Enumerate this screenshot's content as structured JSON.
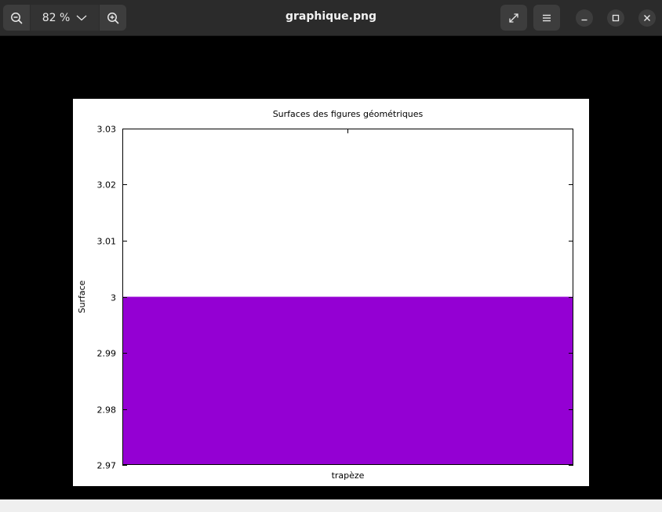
{
  "window": {
    "title": "graphique.png"
  },
  "toolbar": {
    "zoom_level": "82 %"
  },
  "colors": {
    "bar": "#9400d3",
    "headerbar": "#2b2b2b"
  },
  "chart_data": {
    "type": "bar",
    "title": "Surfaces des figures géométriques",
    "xlabel": "",
    "ylabel": "Surface",
    "categories": [
      "trapèze"
    ],
    "values": [
      3
    ],
    "ylim": [
      2.97,
      3.03
    ],
    "yticks": [
      "2.97",
      "2.98",
      "2.99",
      "3",
      "3.01",
      "3.02",
      "3.03"
    ],
    "grid": false,
    "legend": "none"
  }
}
